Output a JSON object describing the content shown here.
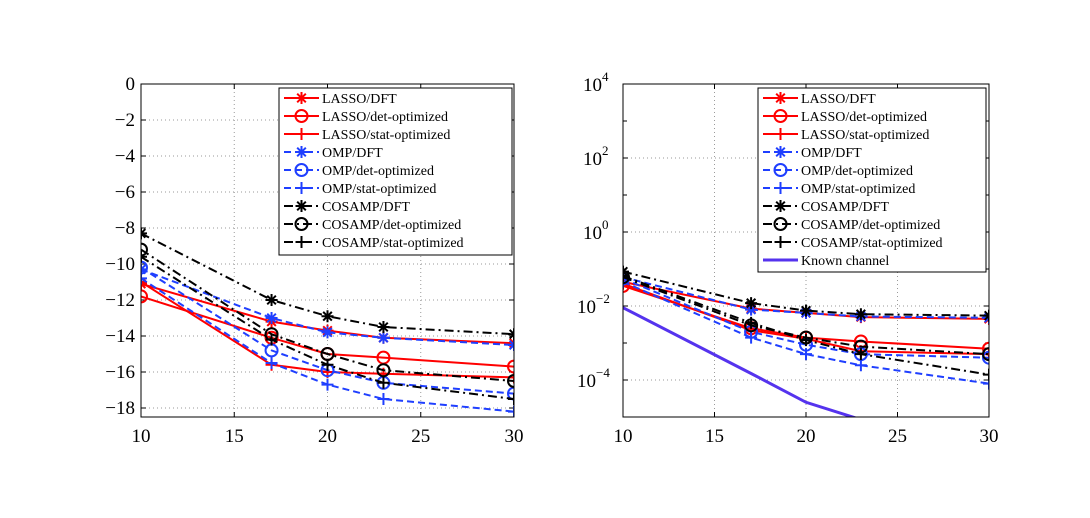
{
  "series_styles": [
    {
      "name": "LASSO/DFT",
      "color": "#ff0000",
      "dash": "solid",
      "marker": "asterisk"
    },
    {
      "name": "LASSO/det-optimized",
      "color": "#ff0000",
      "dash": "solid",
      "marker": "circle"
    },
    {
      "name": "LASSO/stat-optimized",
      "color": "#ff0000",
      "dash": "solid",
      "marker": "plus"
    },
    {
      "name": "OMP/DFT",
      "color": "#1f3fff",
      "dash": "dashed",
      "marker": "asterisk"
    },
    {
      "name": "OMP/det-optimized",
      "color": "#1f3fff",
      "dash": "dashed",
      "marker": "circle"
    },
    {
      "name": "OMP/stat-optimized",
      "color": "#1f3fff",
      "dash": "dashed",
      "marker": "plus"
    },
    {
      "name": "COSAMP/DFT",
      "color": "#000000",
      "dash": "dashdot",
      "marker": "asterisk"
    },
    {
      "name": "COSAMP/det-optimized",
      "color": "#000000",
      "dash": "dashdot",
      "marker": "circle"
    },
    {
      "name": "COSAMP/stat-optimized",
      "color": "#000000",
      "dash": "dashdot",
      "marker": "plus"
    },
    {
      "name": "Known channel",
      "color": "#5533ee",
      "dash": "solid",
      "marker": "none"
    }
  ],
  "chart_data": [
    {
      "type": "line",
      "xlabel": "",
      "ylabel": "",
      "xlim": [
        10,
        30
      ],
      "ylim": [
        -18.5,
        0
      ],
      "yscale": "linear",
      "xticks": [
        10,
        15,
        20,
        25,
        30
      ],
      "xtick_labels": [
        "10",
        "15",
        "20",
        "25",
        "30"
      ],
      "yticks": [
        0,
        -2,
        -4,
        -6,
        -8,
        -10,
        -12,
        -14,
        -16,
        -18
      ],
      "ytick_labels": [
        "0",
        "−2",
        "−4",
        "−6",
        "−8",
        "−10",
        "−12",
        "−14",
        "−16",
        "−18"
      ],
      "grid": true,
      "legend_position": "top-right",
      "x": [
        10,
        17,
        20,
        23,
        30
      ],
      "series": [
        {
          "name": "LASSO/DFT",
          "values": [
            -11.1,
            -13.2,
            -13.7,
            -14.1,
            -14.4
          ]
        },
        {
          "name": "LASSO/det-optimized",
          "values": [
            -11.8,
            -14.1,
            -15.0,
            -15.2,
            -15.7
          ]
        },
        {
          "name": "LASSO/stat-optimized",
          "values": [
            -11.0,
            -15.6,
            -16.0,
            -16.1,
            -16.3
          ]
        },
        {
          "name": "OMP/DFT",
          "values": [
            -10.3,
            -13.0,
            -13.8,
            -14.1,
            -14.5
          ]
        },
        {
          "name": "OMP/det-optimized",
          "values": [
            -10.2,
            -14.8,
            -15.9,
            -16.6,
            -17.2
          ]
        },
        {
          "name": "OMP/stat-optimized",
          "values": [
            -10.8,
            -15.5,
            -16.7,
            -17.5,
            -18.2
          ]
        },
        {
          "name": "COSAMP/DFT",
          "values": [
            -8.3,
            -12.0,
            -12.9,
            -13.5,
            -13.9
          ]
        },
        {
          "name": "COSAMP/det-optimized",
          "values": [
            -9.2,
            -13.9,
            -15.0,
            -15.9,
            -16.5
          ]
        },
        {
          "name": "COSAMP/stat-optimized",
          "values": [
            -9.6,
            -14.2,
            -15.6,
            -16.6,
            -17.5
          ]
        }
      ]
    },
    {
      "type": "line",
      "xlabel": "",
      "ylabel": "",
      "xlim": [
        10,
        30
      ],
      "ylim": [
        -5,
        4
      ],
      "yscale": "log",
      "xticks": [
        10,
        15,
        20,
        25,
        30
      ],
      "xtick_labels": [
        "10",
        "15",
        "20",
        "25",
        "30"
      ],
      "yticks": [
        4,
        2,
        0,
        -2,
        -4
      ],
      "ytick_bases": [
        "10",
        "10",
        "10",
        "10",
        "10"
      ],
      "ytick_exponents": [
        "4",
        "2",
        "0",
        "−2",
        "−4"
      ],
      "grid": true,
      "legend_position": "top-right",
      "x": [
        10,
        17,
        20,
        23,
        30
      ],
      "series": [
        {
          "name": "LASSO/DFT",
          "values": [
            0.045,
            0.0085,
            0.0065,
            0.005,
            0.0045
          ]
        },
        {
          "name": "LASSO/det-optimized",
          "values": [
            0.035,
            0.0025,
            0.0014,
            0.0011,
            0.0007
          ]
        },
        {
          "name": "LASSO/stat-optimized",
          "values": [
            0.04,
            0.0022,
            0.0013,
            0.0006,
            0.0005
          ]
        },
        {
          "name": "OMP/DFT",
          "values": [
            0.06,
            0.008,
            0.0065,
            0.0052,
            0.0048
          ]
        },
        {
          "name": "OMP/det-optimized",
          "values": [
            0.055,
            0.002,
            0.0009,
            0.0005,
            0.0004
          ]
        },
        {
          "name": "OMP/stat-optimized",
          "values": [
            0.045,
            0.0014,
            0.0005,
            0.00025,
            8e-05
          ]
        },
        {
          "name": "COSAMP/DFT",
          "values": [
            0.085,
            0.012,
            0.0075,
            0.006,
            0.0055
          ]
        },
        {
          "name": "COSAMP/det-optimized",
          "values": [
            0.06,
            0.003,
            0.0014,
            0.0008,
            0.0005
          ]
        },
        {
          "name": "COSAMP/stat-optimized",
          "values": [
            0.065,
            0.0035,
            0.0012,
            0.0005,
            0.00014
          ]
        },
        {
          "name": "Known channel",
          "x": [
            10,
            17,
            20,
            23
          ],
          "values": [
            0.009,
            0.00015,
            2.5e-05,
            8.5e-06
          ]
        }
      ]
    }
  ]
}
